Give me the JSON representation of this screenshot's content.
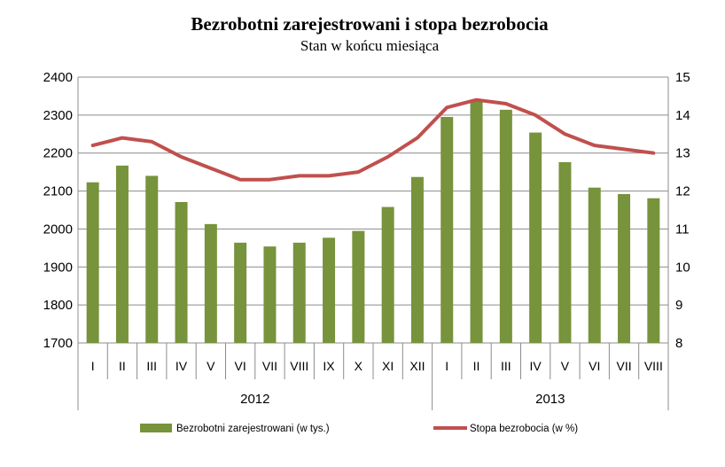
{
  "chart_data": {
    "type": "bar",
    "title": "Bezrobotni zarejestrowani i stopa bezrobocia",
    "subtitle": "Stan w końcu miesiąca",
    "categories": [
      "I",
      "II",
      "III",
      "IV",
      "V",
      "VI",
      "VII",
      "VIII",
      "IX",
      "X",
      "XI",
      "XII",
      "I",
      "II",
      "III",
      "IV",
      "V",
      "VI",
      "VII",
      "VIII"
    ],
    "groups": [
      {
        "label": "2012",
        "count": 12
      },
      {
        "label": "2013",
        "count": 8
      }
    ],
    "series": [
      {
        "name": "Bezrobotni zarejestrowani (w tys.)",
        "type": "bar",
        "axis": "left",
        "color": "#77933c",
        "values": [
          2123,
          2167,
          2140,
          2071,
          2013,
          1964,
          1954,
          1964,
          1977,
          1995,
          2058,
          2137,
          2295,
          2336,
          2314,
          2254,
          2176,
          2109,
          2092,
          2081
        ]
      },
      {
        "name": "Stopa bezrobocia  (w %)",
        "type": "line",
        "axis": "right",
        "color": "#c0504d",
        "values": [
          13.2,
          13.4,
          13.3,
          12.9,
          12.6,
          12.3,
          12.3,
          12.4,
          12.4,
          12.5,
          12.9,
          13.4,
          14.2,
          14.4,
          14.3,
          14.0,
          13.5,
          13.2,
          13.1,
          13.0
        ]
      }
    ],
    "y_left": {
      "min": 1700,
      "max": 2400,
      "ticks": [
        "1700",
        "1800",
        "1900",
        "2000",
        "2100",
        "2200",
        "2300",
        "2400"
      ]
    },
    "y_right": {
      "min": 8,
      "max": 15,
      "ticks": [
        "8",
        "9",
        "10",
        "11",
        "12",
        "13",
        "14",
        "15"
      ]
    },
    "grid": true,
    "legend_position": "bottom"
  }
}
